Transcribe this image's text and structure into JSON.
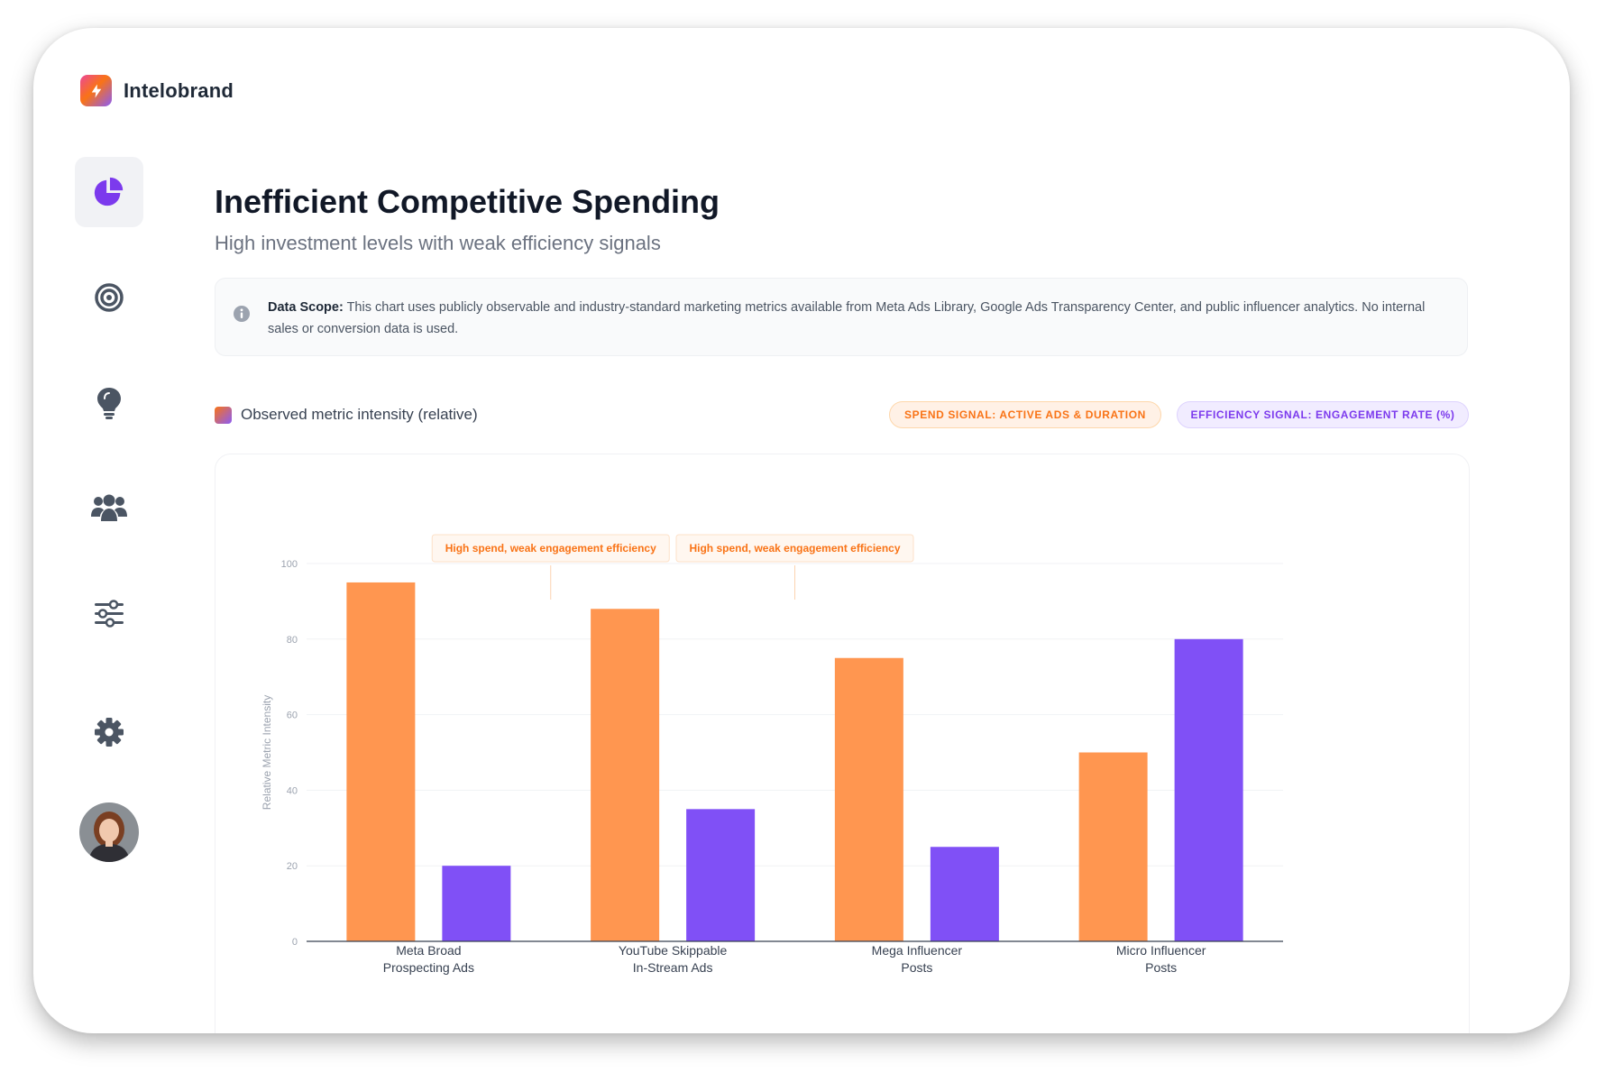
{
  "app": {
    "name": "Intelobrand"
  },
  "sidebar": {
    "items": [
      {
        "name": "analytics",
        "icon": "pie-chart-icon",
        "active": true
      },
      {
        "name": "goals",
        "icon": "target-icon",
        "active": false
      },
      {
        "name": "insights",
        "icon": "lightbulb-icon",
        "active": false
      },
      {
        "name": "audience",
        "icon": "users-icon",
        "active": false
      },
      {
        "name": "filters",
        "icon": "sliders-icon",
        "active": false
      },
      {
        "name": "settings",
        "icon": "gear-icon",
        "active": false
      }
    ],
    "avatar": "user-avatar"
  },
  "page": {
    "title": "Inefficient Competitive Spending",
    "subtitle": "High investment levels with weak efficiency signals"
  },
  "scope": {
    "label": "Data Scope:",
    "text": " This chart uses publicly observable and industry-standard marketing metrics available from Meta Ads Library, Google Ads Transparency Center, and public influencer analytics. No internal sales or conversion data is used."
  },
  "legend": {
    "label": "Observed metric intensity (relative)"
  },
  "pills": {
    "spend": "Spend Signal: Active Ads & Duration",
    "efficiency": "Efficiency Signal: Engagement Rate (%)"
  },
  "colors": {
    "spend": "#FF9650",
    "efficiency": "#8050F6",
    "accent": "#7C3AED"
  },
  "chart_data": {
    "type": "bar",
    "categories": [
      [
        "Meta Broad",
        "Prospecting Ads"
      ],
      [
        "YouTube Skippable",
        "In-Stream Ads"
      ],
      [
        "Mega Influencer",
        "Posts"
      ],
      [
        "Micro Influencer",
        "Posts"
      ]
    ],
    "series": [
      {
        "name": "Spend Signal: Active Ads & Duration",
        "values": [
          95,
          88,
          75,
          50
        ]
      },
      {
        "name": "Efficiency Signal: Engagement Rate (%)",
        "values": [
          20,
          35,
          25,
          80
        ]
      }
    ],
    "ylabel": "Relative Metric Intensity",
    "ylim": [
      0,
      100
    ],
    "yticks": [
      0,
      20,
      40,
      60,
      80,
      100
    ],
    "annotations": [
      {
        "text": "High spend, weak engagement efficiency",
        "category_index": 0
      },
      {
        "text": "High spend, weak engagement efficiency",
        "category_index": 1
      }
    ]
  }
}
